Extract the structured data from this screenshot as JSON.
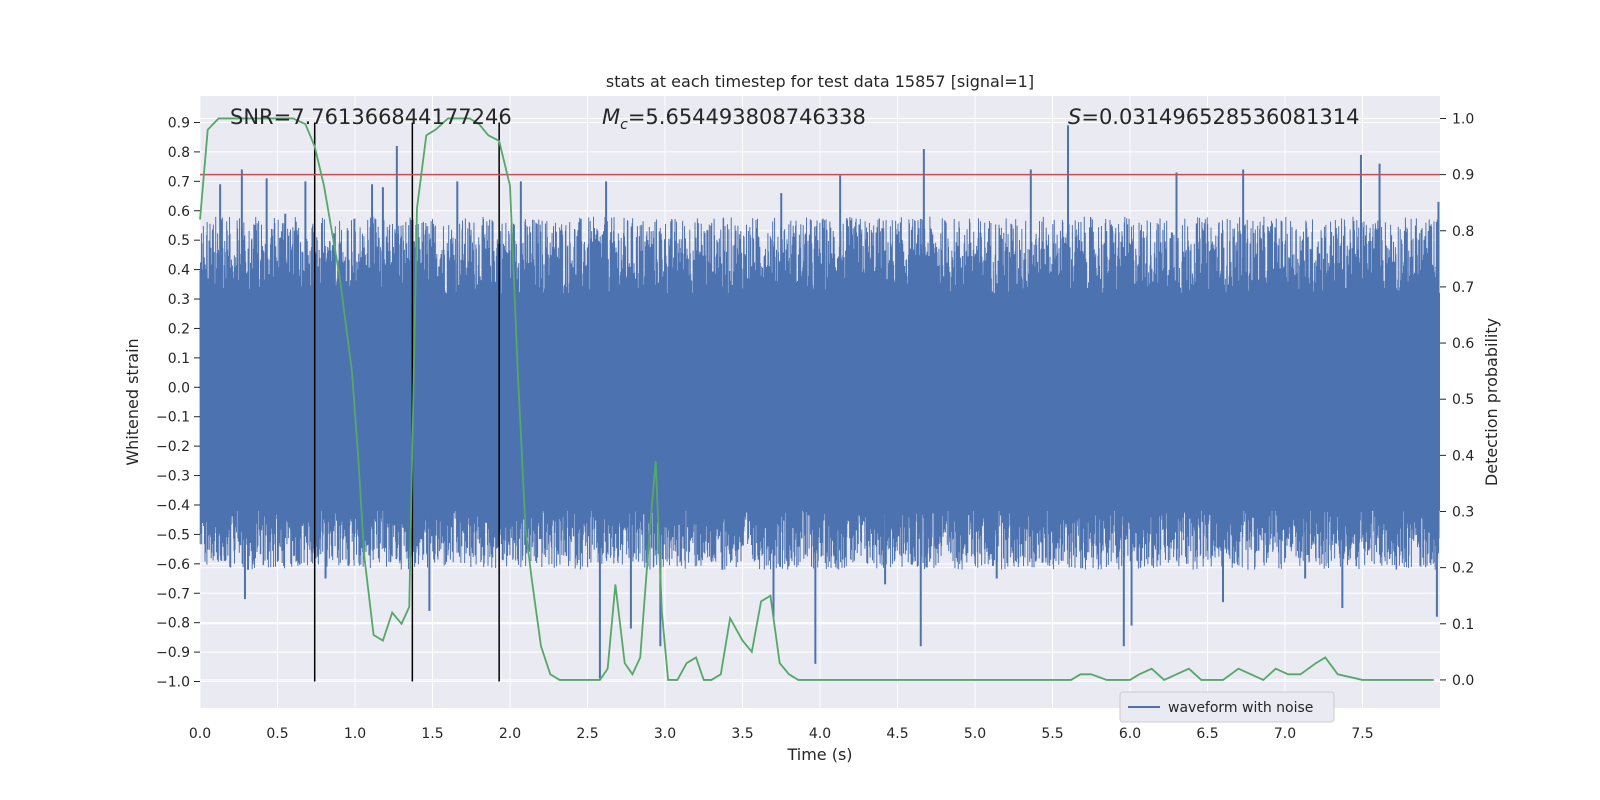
{
  "chart_data": {
    "type": "line",
    "title": "stats at each timestep for test data 15857 [signal=1]",
    "xlabel": "Time (s)",
    "ylabel_left": "Whitened strain",
    "ylabel_right": "Detection probability",
    "xlim": [
      0.0,
      8.0
    ],
    "ylim_left": [
      -1.09,
      0.99
    ],
    "ylim_right": [
      -0.05,
      1.04
    ],
    "x_ticks": [
      0.0,
      0.5,
      1.0,
      1.5,
      2.0,
      2.5,
      3.0,
      3.5,
      4.0,
      4.5,
      5.0,
      5.5,
      6.0,
      6.5,
      7.0,
      7.5
    ],
    "x_tick_labels": [
      "0.0",
      "0.5",
      "1.0",
      "1.5",
      "2.0",
      "2.5",
      "3.0",
      "3.5",
      "4.0",
      "4.5",
      "5.0",
      "5.5",
      "6.0",
      "6.5",
      "7.0",
      "7.5"
    ],
    "y_left_ticks": [
      0.9,
      0.8,
      0.7,
      0.6,
      0.5,
      0.4,
      0.3,
      0.2,
      0.1,
      0.0,
      -0.1,
      -0.2,
      -0.3,
      -0.4,
      -0.5,
      -0.6,
      -0.7,
      -0.8,
      -0.9,
      -1.0
    ],
    "y_left_tick_labels": [
      "0.9",
      "0.8",
      "0.7",
      "0.6",
      "0.5",
      "0.4",
      "0.3",
      "0.2",
      "0.1",
      "0.0",
      "−0.1",
      "−0.2",
      "−0.3",
      "−0.4",
      "−0.5",
      "−0.6",
      "−0.7",
      "−0.8",
      "−0.9",
      "−1.0"
    ],
    "y_right_ticks": [
      1.0,
      0.9,
      0.8,
      0.7,
      0.6,
      0.5,
      0.4,
      0.3,
      0.2,
      0.1,
      0.0
    ],
    "y_right_tick_labels": [
      "1.0",
      "0.9",
      "0.8",
      "0.7",
      "0.6",
      "0.5",
      "0.4",
      "0.3",
      "0.2",
      "0.1",
      "0.0"
    ],
    "annotations": {
      "snr": "SNR=7.761366844177246",
      "mc_symbol": "M",
      "mc_sub": "c",
      "mc_value": "=5.654493808746338",
      "s_symbol": "S",
      "s_value": "=0.031496528536081314"
    },
    "threshold_right": 0.9,
    "vertical_lines_x": [
      0.74,
      1.37,
      1.93
    ],
    "waveform": {
      "name": "waveform with noise",
      "color": "#4c72b0",
      "core_band": [
        -0.42,
        0.32
      ],
      "spikes": [
        {
          "x": 0.13,
          "y": 0.69
        },
        {
          "x": 0.16,
          "y": -0.59
        },
        {
          "x": 0.27,
          "y": 0.74
        },
        {
          "x": 0.29,
          "y": -0.72
        },
        {
          "x": 0.31,
          "y": -0.62
        },
        {
          "x": 0.43,
          "y": 0.71
        },
        {
          "x": 0.55,
          "y": 0.59
        },
        {
          "x": 0.68,
          "y": 0.7
        },
        {
          "x": 0.81,
          "y": -0.65
        },
        {
          "x": 1.11,
          "y": 0.69
        },
        {
          "x": 1.18,
          "y": 0.68
        },
        {
          "x": 1.23,
          "y": -0.55
        },
        {
          "x": 1.27,
          "y": 0.82
        },
        {
          "x": 1.48,
          "y": -0.76
        },
        {
          "x": 1.66,
          "y": 0.7
        },
        {
          "x": 2.07,
          "y": 0.7
        },
        {
          "x": 2.58,
          "y": -0.99
        },
        {
          "x": 2.62,
          "y": 0.7
        },
        {
          "x": 2.78,
          "y": -0.82
        },
        {
          "x": 2.97,
          "y": -0.88
        },
        {
          "x": 3.37,
          "y": -0.62
        },
        {
          "x": 3.7,
          "y": -0.78
        },
        {
          "x": 3.75,
          "y": 0.66
        },
        {
          "x": 3.97,
          "y": -0.94
        },
        {
          "x": 4.13,
          "y": 0.72
        },
        {
          "x": 4.42,
          "y": -0.67
        },
        {
          "x": 4.65,
          "y": -0.88
        },
        {
          "x": 4.67,
          "y": 0.81
        },
        {
          "x": 5.14,
          "y": -0.65
        },
        {
          "x": 5.36,
          "y": 0.74
        },
        {
          "x": 5.6,
          "y": 0.89
        },
        {
          "x": 5.96,
          "y": -0.88
        },
        {
          "x": 6.01,
          "y": -0.81
        },
        {
          "x": 6.3,
          "y": 0.73
        },
        {
          "x": 6.6,
          "y": -0.73
        },
        {
          "x": 6.73,
          "y": 0.74
        },
        {
          "x": 7.13,
          "y": -0.65
        },
        {
          "x": 7.37,
          "y": -0.75
        },
        {
          "x": 7.49,
          "y": 0.79
        },
        {
          "x": 7.61,
          "y": 0.76
        },
        {
          "x": 7.98,
          "y": -0.78
        },
        {
          "x": 7.99,
          "y": 0.63
        }
      ]
    },
    "probability": {
      "name": "detection probability",
      "color": "#55a868",
      "x": [
        0.0,
        0.05,
        0.12,
        0.2,
        0.35,
        0.5,
        0.6,
        0.68,
        0.74,
        0.8,
        0.9,
        0.98,
        1.02,
        1.06,
        1.12,
        1.18,
        1.24,
        1.3,
        1.35,
        1.4,
        1.46,
        1.52,
        1.6,
        1.66,
        1.74,
        1.8,
        1.86,
        1.93,
        2.0,
        2.05,
        2.1,
        2.14,
        2.2,
        2.26,
        2.32,
        2.4,
        2.5,
        2.58,
        2.63,
        2.68,
        2.74,
        2.79,
        2.84,
        2.9,
        2.94,
        2.98,
        3.02,
        3.08,
        3.14,
        3.2,
        3.25,
        3.3,
        3.36,
        3.42,
        3.5,
        3.56,
        3.62,
        3.68,
        3.74,
        3.8,
        3.86,
        3.95,
        4.2,
        4.5,
        4.8,
        5.0,
        5.15,
        5.3,
        5.5,
        5.62,
        5.68,
        5.75,
        5.85,
        6.0,
        6.06,
        6.14,
        6.22,
        6.3,
        6.38,
        6.46,
        6.54,
        6.6,
        6.7,
        6.78,
        6.86,
        6.94,
        7.02,
        7.1,
        7.2,
        7.26,
        7.34,
        7.5,
        7.7,
        7.96
      ],
      "y": [
        0.82,
        0.98,
        1.0,
        1.0,
        1.0,
        1.0,
        1.0,
        0.99,
        0.95,
        0.88,
        0.72,
        0.55,
        0.4,
        0.22,
        0.08,
        0.07,
        0.12,
        0.1,
        0.13,
        0.84,
        0.97,
        0.98,
        1.0,
        1.0,
        1.0,
        0.99,
        0.97,
        0.96,
        0.88,
        0.55,
        0.27,
        0.18,
        0.06,
        0.01,
        0.0,
        0.0,
        0.0,
        0.0,
        0.02,
        0.17,
        0.03,
        0.01,
        0.04,
        0.26,
        0.39,
        0.12,
        0.0,
        0.0,
        0.03,
        0.04,
        0.0,
        0.0,
        0.01,
        0.11,
        0.07,
        0.05,
        0.14,
        0.15,
        0.03,
        0.01,
        0.0,
        0.0,
        0.0,
        0.0,
        0.0,
        0.0,
        0.0,
        0.0,
        0.0,
        0.0,
        0.01,
        0.01,
        0.0,
        0.0,
        0.01,
        0.02,
        0.0,
        0.01,
        0.02,
        0.0,
        0.0,
        0.0,
        0.02,
        0.01,
        0.0,
        0.02,
        0.01,
        0.01,
        0.03,
        0.04,
        0.01,
        0.0,
        0.0,
        0.0
      ]
    },
    "legend": {
      "label": "waveform with noise",
      "loc": "lower-right"
    }
  }
}
